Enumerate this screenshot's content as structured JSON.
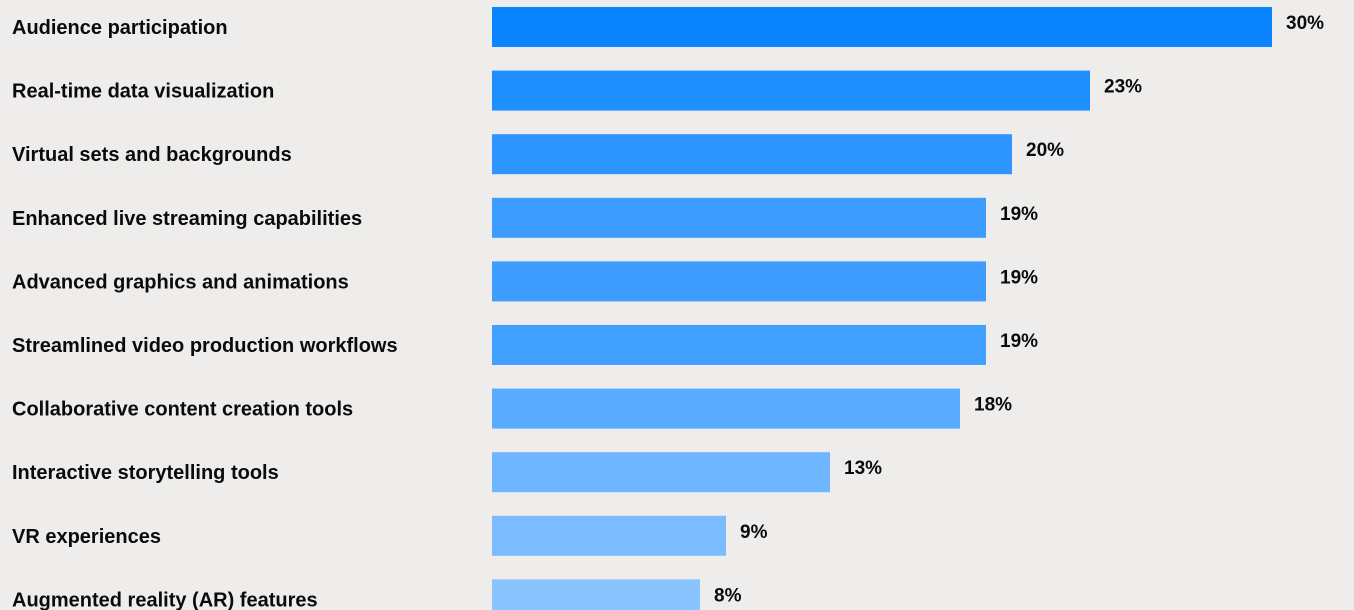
{
  "chart_data": {
    "type": "bar",
    "orientation": "horizontal",
    "title": "",
    "xlabel": "",
    "ylabel": "",
    "xlim": [
      0,
      30
    ],
    "grid": false,
    "legend": "none",
    "value_suffix": "%",
    "categories": [
      "Audience participation",
      "Real-time data visualization",
      "Virtual sets and backgrounds",
      "Enhanced live streaming capabilities",
      "Advanced graphics and animations",
      "Streamlined video production workflows",
      "Collaborative content creation tools",
      "Interactive storytelling tools",
      "VR experiences",
      "Augmented reality (AR) features"
    ],
    "values": [
      30,
      23,
      20,
      19,
      19,
      19,
      18,
      13,
      9,
      8
    ],
    "value_labels": [
      "30%",
      "23%",
      "20%",
      "19%",
      "19%",
      "19%",
      "18%",
      "13%",
      "9%",
      "8%"
    ],
    "bar_colors": [
      "#0A84FF",
      "#1F8EFF",
      "#2D95FF",
      "#3C9CFF",
      "#3E9DFF",
      "#42A0FF",
      "#58ABFF",
      "#6EB6FF",
      "#7ABCFF",
      "#8AC4FF"
    ]
  },
  "colors": {
    "background": "#EFEDEB",
    "text": "#0B0B0B"
  }
}
